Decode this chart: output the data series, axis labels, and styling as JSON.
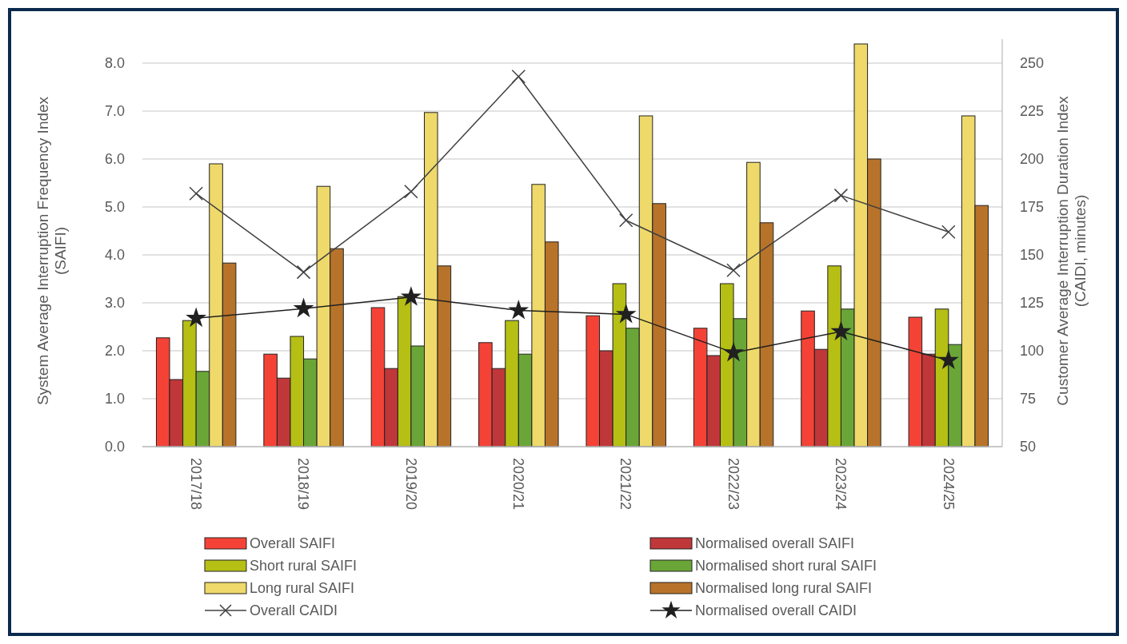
{
  "chart_data": {
    "type": "bar",
    "categories": [
      "2017/18",
      "2018/19",
      "2019/20",
      "2020/21",
      "2021/22",
      "2022/23",
      "2023/24",
      "2024/25"
    ],
    "series": [
      {
        "name": "Overall SAIFI",
        "color": "#f44336",
        "values": [
          2.27,
          1.93,
          2.9,
          2.17,
          2.73,
          2.47,
          2.83,
          2.7
        ]
      },
      {
        "name": "Normalised overall SAIFI",
        "color": "#c0373a",
        "values": [
          1.4,
          1.43,
          1.63,
          1.63,
          2.0,
          1.9,
          2.03,
          1.93
        ]
      },
      {
        "name": "Short rural SAIFI",
        "color": "#b5bf14",
        "values": [
          2.63,
          2.3,
          3.13,
          2.63,
          3.4,
          3.4,
          3.77,
          2.87
        ]
      },
      {
        "name": "Normalised short rural SAIFI",
        "color": "#6aa637",
        "values": [
          1.57,
          1.83,
          2.1,
          1.93,
          2.47,
          2.67,
          2.87,
          2.13
        ]
      },
      {
        "name": "Long rural SAIFI",
        "color": "#eed96a",
        "values": [
          5.9,
          5.43,
          6.97,
          5.47,
          6.9,
          5.93,
          8.4,
          6.9
        ]
      },
      {
        "name": "Normalised long rural SAIFI",
        "color": "#b8732a",
        "values": [
          3.83,
          4.13,
          3.77,
          4.27,
          5.07,
          4.67,
          6.0,
          5.03
        ]
      },
      {
        "name": "Overall CAIDI",
        "type": "line",
        "axis": "y2",
        "marker": "cross",
        "color": "#404040",
        "values": [
          182,
          141,
          183,
          243,
          168,
          142,
          181,
          162
        ]
      },
      {
        "name": "Normalised overall CAIDI",
        "type": "line",
        "axis": "y2",
        "marker": "star",
        "color": "#202020",
        "values": [
          117,
          122,
          128,
          121,
          119,
          99,
          110,
          95
        ]
      }
    ],
    "ylabel": "System Average Interruption Frequency Index (SAIFI)",
    "y2label": "Customer Average Interruption Duration Index (CAIDI, minutes)",
    "ylim": [
      0,
      8.5
    ],
    "yticks": [
      {
        "value": 0,
        "label": "0.0"
      },
      {
        "value": 1,
        "label": "1.0"
      },
      {
        "value": 2,
        "label": "2.0"
      },
      {
        "value": 3,
        "label": "3.0"
      },
      {
        "value": 4,
        "label": "4.0"
      },
      {
        "value": 5,
        "label": "5.0"
      },
      {
        "value": 6,
        "label": "6.0"
      },
      {
        "value": 7,
        "label": "7.0"
      },
      {
        "value": 8,
        "label": "8.0"
      }
    ],
    "y2lim": [
      50,
      262.5
    ],
    "y2ticks": [
      50,
      75,
      100,
      125,
      150,
      175,
      200,
      225,
      250
    ],
    "grid": "y",
    "legend": "bottom"
  }
}
